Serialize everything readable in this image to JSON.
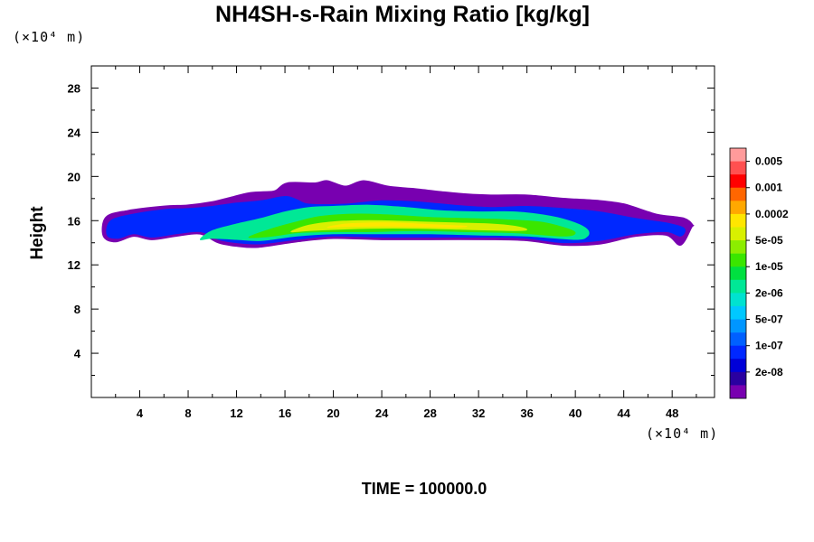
{
  "chart_data": {
    "type": "contour",
    "title": "NH4SH-s-Rain Mixing Ratio [kg/kg]",
    "ylabel": "Height",
    "xlabel": "",
    "x_unit_label": "(×10⁴ m)",
    "y_unit_label": "(×10⁴ m)",
    "xlim": [
      0,
      51.5
    ],
    "ylim": [
      0,
      30
    ],
    "x_ticks": [
      4,
      8,
      12,
      16,
      20,
      24,
      28,
      32,
      36,
      40,
      44,
      48
    ],
    "y_ticks": [
      4,
      8,
      12,
      16,
      20,
      24,
      28
    ],
    "time_label": "TIME = 100000.0",
    "colorbar": {
      "labels": [
        "0.005",
        "0.001",
        "0.0002",
        "5e-05",
        "1e-05",
        "2e-06",
        "5e-07",
        "1e-07",
        "2e-08"
      ],
      "colors_top_to_bottom": [
        "#ff9b9b",
        "#ff5050",
        "#ff0000",
        "#ff6600",
        "#ffa800",
        "#ffe600",
        "#d8f000",
        "#8ced00",
        "#3ae600",
        "#00e040",
        "#00e896",
        "#00e2d0",
        "#00c8ff",
        "#0096ff",
        "#0060ff",
        "#0028ff",
        "#0000d8",
        "#2a00a0",
        "#7800b0"
      ]
    },
    "field_layers": [
      {
        "level": "2e-08",
        "color": "#7800b0",
        "top": [
          [
            1,
            14.6
          ],
          [
            1.2,
            16.3
          ],
          [
            3,
            16.9
          ],
          [
            6,
            17.3
          ],
          [
            8,
            17.4
          ],
          [
            10,
            17.7
          ],
          [
            11.5,
            18.1
          ],
          [
            13,
            18.5
          ],
          [
            14.2,
            18.6
          ],
          [
            15.2,
            18.7
          ],
          [
            16.2,
            19.4
          ],
          [
            18.5,
            19.4
          ],
          [
            19.5,
            19.6
          ],
          [
            21,
            19.1
          ],
          [
            22.5,
            19.6
          ],
          [
            24.5,
            19.1
          ],
          [
            26.5,
            18.9
          ],
          [
            29,
            18.6
          ],
          [
            31,
            18.4
          ],
          [
            33,
            18.3
          ],
          [
            36,
            18.3
          ],
          [
            39,
            18.0
          ],
          [
            42,
            17.8
          ],
          [
            44,
            17.5
          ],
          [
            46,
            16.8
          ],
          [
            47,
            16.5
          ],
          [
            49,
            16.2
          ],
          [
            49.7,
            15.6
          ]
        ],
        "bottom": [
          [
            49.6,
            15.4
          ],
          [
            48.7,
            13.8
          ],
          [
            47.5,
            14.7
          ],
          [
            45,
            14.6
          ],
          [
            42,
            13.9
          ],
          [
            39,
            13.8
          ],
          [
            36,
            14.2
          ],
          [
            33,
            14.3
          ],
          [
            28,
            14.3
          ],
          [
            24,
            14.3
          ],
          [
            20,
            14.4
          ],
          [
            17,
            14.1
          ],
          [
            13.8,
            13.6
          ],
          [
            12,
            13.7
          ],
          [
            10.5,
            14.0
          ],
          [
            9,
            14.8
          ],
          [
            7,
            14.6
          ],
          [
            5,
            14.3
          ],
          [
            3.5,
            14.6
          ],
          [
            2,
            14.1
          ]
        ]
      },
      {
        "level": "1e-07",
        "color": "#0028ff",
        "top": [
          [
            1.3,
            14.7
          ],
          [
            1.6,
            16.0
          ],
          [
            3.5,
            16.6
          ],
          [
            6,
            17.0
          ],
          [
            8,
            17.1
          ],
          [
            10,
            17.3
          ],
          [
            12,
            17.6
          ],
          [
            14,
            17.8
          ],
          [
            16,
            18.2
          ],
          [
            17,
            17.9
          ],
          [
            18,
            17.5
          ],
          [
            21,
            17.5
          ],
          [
            24,
            17.8
          ],
          [
            27,
            17.7
          ],
          [
            30,
            17.4
          ],
          [
            33,
            17.2
          ],
          [
            36,
            17.3
          ],
          [
            39,
            17.1
          ],
          [
            42,
            16.8
          ],
          [
            45,
            16.2
          ],
          [
            47.5,
            15.8
          ],
          [
            49,
            15.3
          ]
        ],
        "bottom": [
          [
            48.7,
            14.6
          ],
          [
            47.5,
            15.0
          ],
          [
            45,
            14.8
          ],
          [
            42,
            14.2
          ],
          [
            39,
            14.0
          ],
          [
            36,
            14.4
          ],
          [
            33,
            14.5
          ],
          [
            28,
            14.5
          ],
          [
            24,
            14.5
          ],
          [
            20,
            14.6
          ],
          [
            17,
            14.3
          ],
          [
            14,
            13.9
          ],
          [
            12,
            14.0
          ],
          [
            10.5,
            14.3
          ],
          [
            9,
            15.0
          ],
          [
            7,
            14.8
          ],
          [
            5,
            14.5
          ],
          [
            3.5,
            14.8
          ],
          [
            2.2,
            14.4
          ]
        ]
      },
      {
        "level": "2e-06",
        "color": "#00e896",
        "top": [
          [
            9,
            14.3
          ],
          [
            10,
            15.1
          ],
          [
            12,
            15.7
          ],
          [
            14,
            16.2
          ],
          [
            16,
            16.8
          ],
          [
            18,
            17.2
          ],
          [
            20,
            17.3
          ],
          [
            23,
            17.4
          ],
          [
            26,
            17.2
          ],
          [
            29,
            16.9
          ],
          [
            32,
            16.8
          ],
          [
            35,
            16.8
          ],
          [
            38,
            16.4
          ],
          [
            40,
            15.8
          ],
          [
            41,
            15.2
          ],
          [
            41,
            14.6
          ]
        ],
        "bottom": [
          [
            40,
            14.3
          ],
          [
            36,
            14.6
          ],
          [
            32,
            14.7
          ],
          [
            28,
            14.8
          ],
          [
            24,
            14.8
          ],
          [
            20,
            14.8
          ],
          [
            17,
            14.6
          ],
          [
            14,
            14.2
          ],
          [
            12,
            14.3
          ],
          [
            10,
            14.4
          ]
        ]
      },
      {
        "level": "1e-05",
        "color": "#3ae600",
        "top": [
          [
            13,
            14.5
          ],
          [
            15,
            15.3
          ],
          [
            17,
            15.9
          ],
          [
            19,
            16.4
          ],
          [
            22,
            16.6
          ],
          [
            25,
            16.5
          ],
          [
            28,
            16.3
          ],
          [
            31,
            16.2
          ],
          [
            34,
            16.1
          ],
          [
            37,
            15.9
          ],
          [
            39,
            15.4
          ],
          [
            40,
            14.9
          ]
        ],
        "bottom": [
          [
            39,
            14.6
          ],
          [
            35,
            14.9
          ],
          [
            31,
            15.0
          ],
          [
            27,
            15.1
          ],
          [
            23,
            15.0
          ],
          [
            20,
            15.0
          ],
          [
            17,
            14.9
          ],
          [
            15,
            14.6
          ]
        ]
      },
      {
        "level": "5e-05",
        "color": "#d8f000",
        "top": [
          [
            16.5,
            15.0
          ],
          [
            18,
            15.6
          ],
          [
            20,
            15.9
          ],
          [
            22,
            16.0
          ],
          [
            24,
            16.0
          ],
          [
            27,
            15.9
          ],
          [
            30,
            15.8
          ],
          [
            33,
            15.7
          ],
          [
            35,
            15.5
          ],
          [
            36,
            15.2
          ]
        ],
        "bottom": [
          [
            35,
            15.1
          ],
          [
            31,
            15.2
          ],
          [
            27,
            15.3
          ],
          [
            23,
            15.3
          ],
          [
            20,
            15.2
          ],
          [
            18,
            15.1
          ]
        ]
      },
      {
        "level": "0.0002",
        "color": "#ffe600",
        "top": [
          [
            19.5,
            15.4
          ],
          [
            21,
            15.7
          ],
          [
            23,
            15.8
          ],
          [
            25,
            15.8
          ],
          [
            27,
            15.7
          ],
          [
            29,
            15.6
          ],
          [
            31,
            15.5
          ]
        ],
        "bottom": [
          [
            30,
            15.4
          ],
          [
            27,
            15.45
          ],
          [
            24,
            15.5
          ],
          [
            21,
            15.45
          ]
        ]
      }
    ]
  }
}
